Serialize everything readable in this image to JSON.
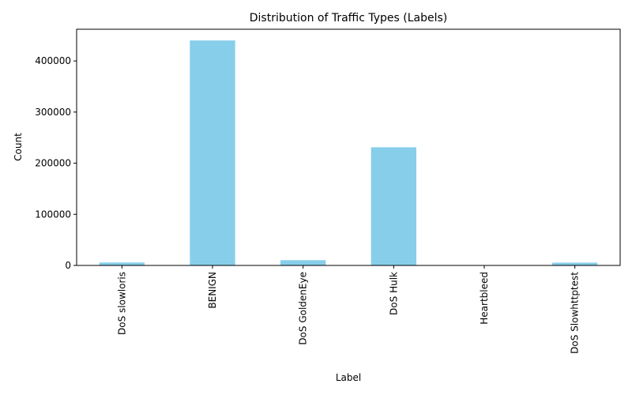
{
  "chart_data": {
    "type": "bar",
    "title": "Distribution of Traffic Types (Labels)",
    "xlabel": "Label",
    "ylabel": "Count",
    "categories": [
      "DoS slowloris",
      "BENIGN",
      "DoS GoldenEye",
      "DoS Hulk",
      "Heartbleed",
      "DoS Slowhttptest"
    ],
    "values": [
      5796,
      440031,
      10293,
      231073,
      11,
      5499
    ],
    "yticks": [
      "0",
      "100000",
      "200000",
      "300000",
      "400000"
    ],
    "ylim": [
      0,
      462000
    ],
    "bar_color": "#87ceeb",
    "grid": false,
    "legend": "none"
  }
}
